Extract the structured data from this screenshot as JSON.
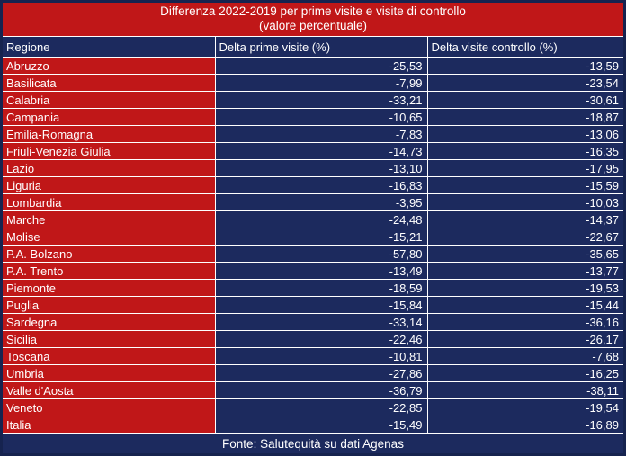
{
  "colors": {
    "red": "#c01718",
    "navy": "#1c2a5e",
    "outer_border": "#16234f",
    "divider": "#ffffff",
    "text": "#ffffff"
  },
  "title": {
    "line1": "Differenza 2022-2019 per prime visite e visite di controllo",
    "line2": "(valore percentuale)"
  },
  "table": {
    "columns": [
      "Regione",
      "Delta prime visite (%)",
      "Delta visite controllo (%)"
    ],
    "rows": [
      {
        "regione": "Abruzzo",
        "delta_prime": "-25,53",
        "delta_controllo": "-13,59"
      },
      {
        "regione": "Basilicata",
        "delta_prime": "-7,99",
        "delta_controllo": "-23,54"
      },
      {
        "regione": "Calabria",
        "delta_prime": "-33,21",
        "delta_controllo": "-30,61"
      },
      {
        "regione": "Campania",
        "delta_prime": "-10,65",
        "delta_controllo": "-18,87"
      },
      {
        "regione": "Emilia-Romagna",
        "delta_prime": "-7,83",
        "delta_controllo": "-13,06"
      },
      {
        "regione": "Friuli-Venezia Giulia",
        "delta_prime": "-14,73",
        "delta_controllo": "-16,35"
      },
      {
        "regione": "Lazio",
        "delta_prime": "-13,10",
        "delta_controllo": "-17,95"
      },
      {
        "regione": "Liguria",
        "delta_prime": "-16,83",
        "delta_controllo": "-15,59"
      },
      {
        "regione": "Lombardia",
        "delta_prime": "-3,95",
        "delta_controllo": "-10,03"
      },
      {
        "regione": "Marche",
        "delta_prime": "-24,48",
        "delta_controllo": "-14,37"
      },
      {
        "regione": "Molise",
        "delta_prime": "-15,21",
        "delta_controllo": "-22,67"
      },
      {
        "regione": "P.A. Bolzano",
        "delta_prime": "-57,80",
        "delta_controllo": "-35,65"
      },
      {
        "regione": "P.A. Trento",
        "delta_prime": "-13,49",
        "delta_controllo": "-13,77"
      },
      {
        "regione": "Piemonte",
        "delta_prime": "-18,59",
        "delta_controllo": "-19,53"
      },
      {
        "regione": "Puglia",
        "delta_prime": "-15,84",
        "delta_controllo": "-15,44"
      },
      {
        "regione": "Sardegna",
        "delta_prime": "-33,14",
        "delta_controllo": "-36,16"
      },
      {
        "regione": "Sicilia",
        "delta_prime": "-22,46",
        "delta_controllo": "-26,17"
      },
      {
        "regione": "Toscana",
        "delta_prime": "-10,81",
        "delta_controllo": "-7,68"
      },
      {
        "regione": "Umbria",
        "delta_prime": "-27,86",
        "delta_controllo": "-16,25"
      },
      {
        "regione": "Valle d'Aosta",
        "delta_prime": "-36,79",
        "delta_controllo": "-38,11"
      },
      {
        "regione": "Veneto",
        "delta_prime": "-22,85",
        "delta_controllo": "-19,54"
      },
      {
        "regione": "Italia",
        "delta_prime": "-15,49",
        "delta_controllo": "-16,89"
      }
    ]
  },
  "footer": {
    "source": "Fonte: Salutequità su dati Agenas"
  },
  "chart_data": {
    "type": "table",
    "title": "Differenza 2022-2019 per prime visite e visite di controllo (valore percentuale)",
    "columns": [
      "Regione",
      "Delta prime visite (%)",
      "Delta visite controllo (%)"
    ],
    "categories": [
      "Abruzzo",
      "Basilicata",
      "Calabria",
      "Campania",
      "Emilia-Romagna",
      "Friuli-Venezia Giulia",
      "Lazio",
      "Liguria",
      "Lombardia",
      "Marche",
      "Molise",
      "P.A. Bolzano",
      "P.A. Trento",
      "Piemonte",
      "Puglia",
      "Sardegna",
      "Sicilia",
      "Toscana",
      "Umbria",
      "Valle d'Aosta",
      "Veneto",
      "Italia"
    ],
    "series": [
      {
        "name": "Delta prime visite (%)",
        "values": [
          -25.53,
          -7.99,
          -33.21,
          -10.65,
          -7.83,
          -14.73,
          -13.1,
          -16.83,
          -3.95,
          -24.48,
          -15.21,
          -57.8,
          -13.49,
          -18.59,
          -15.84,
          -33.14,
          -22.46,
          -10.81,
          -27.86,
          -36.79,
          -22.85,
          -15.49
        ]
      },
      {
        "name": "Delta visite controllo (%)",
        "values": [
          -13.59,
          -23.54,
          -30.61,
          -18.87,
          -13.06,
          -16.35,
          -17.95,
          -15.59,
          -10.03,
          -14.37,
          -22.67,
          -35.65,
          -13.77,
          -19.53,
          -15.44,
          -36.16,
          -26.17,
          -7.68,
          -16.25,
          -38.11,
          -19.54,
          -16.89
        ]
      }
    ],
    "annotations": [
      "Fonte: Salutequità su dati Agenas"
    ]
  }
}
